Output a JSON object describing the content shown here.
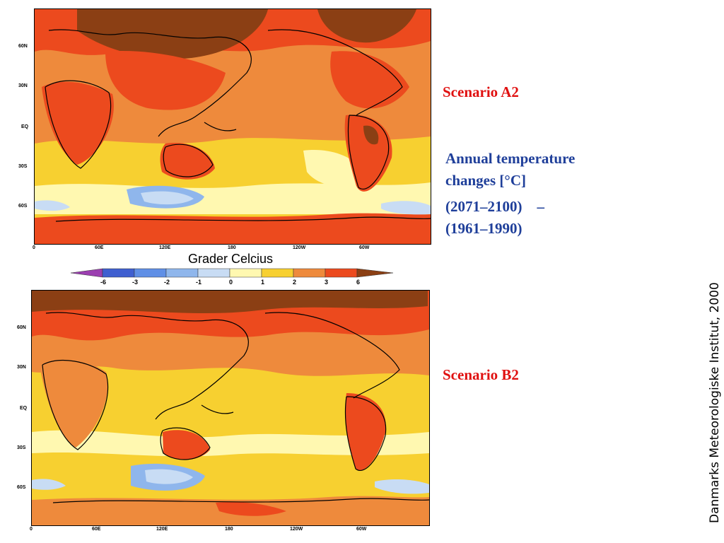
{
  "maps": [
    {
      "id": "a2",
      "scenario_label": "Scenario A2"
    },
    {
      "id": "b2",
      "scenario_label": "Scenario B2"
    }
  ],
  "lat_labels": [
    "60N",
    "30N",
    "EQ",
    "30S",
    "60S"
  ],
  "lon_labels": [
    "0",
    "60E",
    "120E",
    "180",
    "120W",
    "60W"
  ],
  "colorbar": {
    "title": "Grader Celcius",
    "ticks": [
      "-6",
      "-3",
      "-2",
      "-1",
      "0",
      "1",
      "2",
      "3",
      "6"
    ],
    "colors": [
      "#9b3fb0",
      "#3f5fd0",
      "#5f8fe6",
      "#8fb6ec",
      "#c8dcf4",
      "#fff8b0",
      "#f7d030",
      "#ee8a3c",
      "#ec4a1e",
      "#8b3f14"
    ]
  },
  "description": {
    "line1": "Annual temperature",
    "line2": "changes [°C]",
    "line3": "(2071–2100)    –",
    "line4": "(1961–1990)"
  },
  "credit": "Danmarks Meteorologiske Institut, 2000"
}
